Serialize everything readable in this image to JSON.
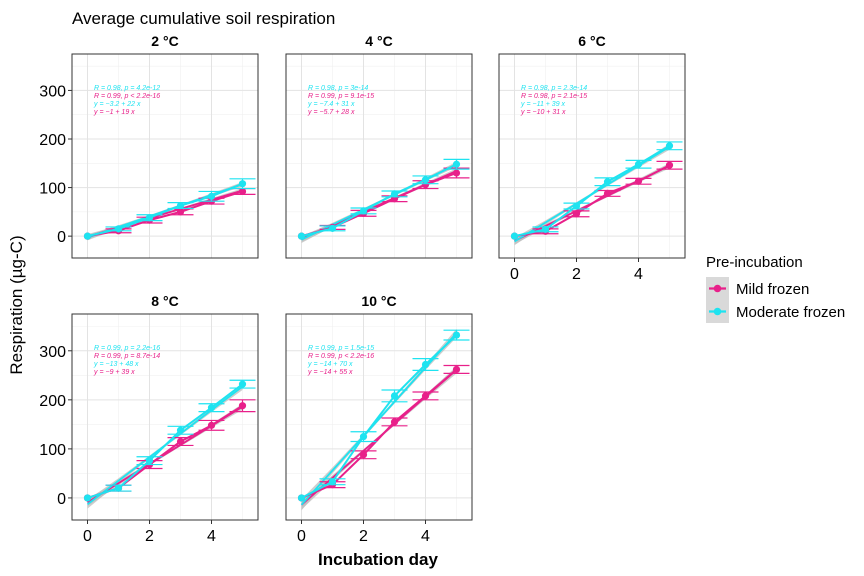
{
  "chart_data": {
    "type": "line",
    "title": "Average cumulative soil respiration",
    "xlabel": "Incubation day",
    "ylabel": "Respiration (µg-C)",
    "xticks": [
      "0",
      "2",
      "4"
    ],
    "yticks": [
      "0",
      "100",
      "200",
      "300"
    ],
    "xlim": [
      -0.5,
      5.5
    ],
    "ylim": [
      -45,
      375
    ],
    "grid": true,
    "legend": {
      "title": "Pre-incubation",
      "position": "right",
      "entries": [
        {
          "label": "Mild frozen",
          "color": "#e8208a"
        },
        {
          "label": "Moderate frozen",
          "color": "#1ee3f0"
        }
      ]
    },
    "colors": {
      "mild": "#e8208a",
      "moderate": "#1ee3f0",
      "ribbon": "#bdbdbd"
    },
    "x": [
      0,
      1,
      2,
      3,
      4,
      5
    ],
    "panels": [
      {
        "strip": "2 °C",
        "series": [
          {
            "key": "mild",
            "values": [
              0,
              11,
              33,
              50,
              72,
              92
            ],
            "err": [
              3,
              4,
              6,
              6,
              6,
              6
            ]
          },
          {
            "key": "moderate",
            "values": [
              0,
              15,
              38,
              63,
              82,
              108
            ],
            "err": [
              3,
              4,
              6,
              6,
              10,
              10
            ]
          }
        ],
        "fits": [
          {
            "key": "mild",
            "intercept": -1,
            "slope": 19
          },
          {
            "key": "moderate",
            "intercept": -3.2,
            "slope": 22
          }
        ],
        "annotations": [
          {
            "key": "moderate",
            "text": "R = 0.98, p = 4.2e-12"
          },
          {
            "key": "mild",
            "text": "R = 0.99, p < 2.2e-16"
          },
          {
            "key": "moderate",
            "text": "y = −3.2 + 22 x"
          },
          {
            "key": "mild",
            "text": "y = −1 + 19 x"
          }
        ]
      },
      {
        "strip": "4 °C",
        "series": [
          {
            "key": "mild",
            "values": [
              0,
              18,
              47,
              77,
              106,
              130
            ],
            "err": [
              3,
              4,
              6,
              6,
              8,
              10
            ]
          },
          {
            "key": "moderate",
            "values": [
              0,
              16,
              52,
              87,
              116,
              148
            ],
            "err": [
              3,
              5,
              6,
              6,
              8,
              10
            ]
          }
        ],
        "fits": [
          {
            "key": "mild",
            "intercept": -5.7,
            "slope": 28
          },
          {
            "key": "moderate",
            "intercept": -7.4,
            "slope": 31
          }
        ],
        "annotations": [
          {
            "key": "moderate",
            "text": "R = 0.98, p = 3e-14"
          },
          {
            "key": "mild",
            "text": "R = 0.99, p = 9.1e-15"
          },
          {
            "key": "moderate",
            "text": "y = −7.4 + 31 x"
          },
          {
            "key": "mild",
            "text": "y = −5.7 + 28 x"
          }
        ]
      },
      {
        "strip": "6 °C",
        "series": [
          {
            "key": "mild",
            "values": [
              0,
              10,
              46,
              88,
              113,
              146
            ],
            "err": [
              3,
              5,
              6,
              6,
              6,
              8
            ]
          },
          {
            "key": "moderate",
            "values": [
              0,
              14,
              62,
              112,
              148,
              186
            ],
            "err": [
              3,
              5,
              6,
              8,
              8,
              8
            ]
          }
        ],
        "fits": [
          {
            "key": "mild",
            "intercept": -10,
            "slope": 31
          },
          {
            "key": "moderate",
            "intercept": -11,
            "slope": 39
          }
        ],
        "annotations": [
          {
            "key": "moderate",
            "text": "R = 0.98, p = 2.3e-14"
          },
          {
            "key": "mild",
            "text": "R = 0.98, p = 2.1e-15"
          },
          {
            "key": "moderate",
            "text": "y = −11 + 39 x"
          },
          {
            "key": "mild",
            "text": "y = −10 + 31 x"
          }
        ]
      },
      {
        "strip": "8 °C",
        "series": [
          {
            "key": "mild",
            "values": [
              0,
              20,
              68,
              115,
              148,
              188
            ],
            "err": [
              3,
              6,
              8,
              8,
              10,
              12
            ]
          },
          {
            "key": "moderate",
            "values": [
              0,
              20,
              76,
              138,
              184,
              232
            ],
            "err": [
              3,
              6,
              8,
              8,
              8,
              8
            ]
          }
        ],
        "fits": [
          {
            "key": "mild",
            "intercept": -9,
            "slope": 39
          },
          {
            "key": "moderate",
            "intercept": -13,
            "slope": 48
          }
        ],
        "annotations": [
          {
            "key": "moderate",
            "text": "R = 0.99, p = 2.2e-16"
          },
          {
            "key": "mild",
            "text": "R = 0.99, p = 8.7e-14"
          },
          {
            "key": "moderate",
            "text": "y = −13 + 48 x"
          },
          {
            "key": "mild",
            "text": "y = −9 + 39 x"
          }
        ]
      },
      {
        "strip": "10 °C",
        "series": [
          {
            "key": "mild",
            "values": [
              0,
              27,
              88,
              155,
              208,
              262
            ],
            "err": [
              3,
              6,
              8,
              8,
              8,
              8
            ]
          },
          {
            "key": "moderate",
            "values": [
              0,
              33,
              125,
              208,
              272,
              332
            ],
            "err": [
              3,
              6,
              10,
              12,
              12,
              10
            ]
          }
        ],
        "fits": [
          {
            "key": "mild",
            "intercept": -14,
            "slope": 55
          },
          {
            "key": "moderate",
            "intercept": -14,
            "slope": 70
          }
        ],
        "annotations": [
          {
            "key": "moderate",
            "text": "R = 0.99, p = 1.5e-15"
          },
          {
            "key": "mild",
            "text": "R = 0.99, p < 2.2e-16"
          },
          {
            "key": "moderate",
            "text": "y = −14 + 70 x"
          },
          {
            "key": "mild",
            "text": "y = −14 + 55 x"
          }
        ]
      }
    ]
  }
}
